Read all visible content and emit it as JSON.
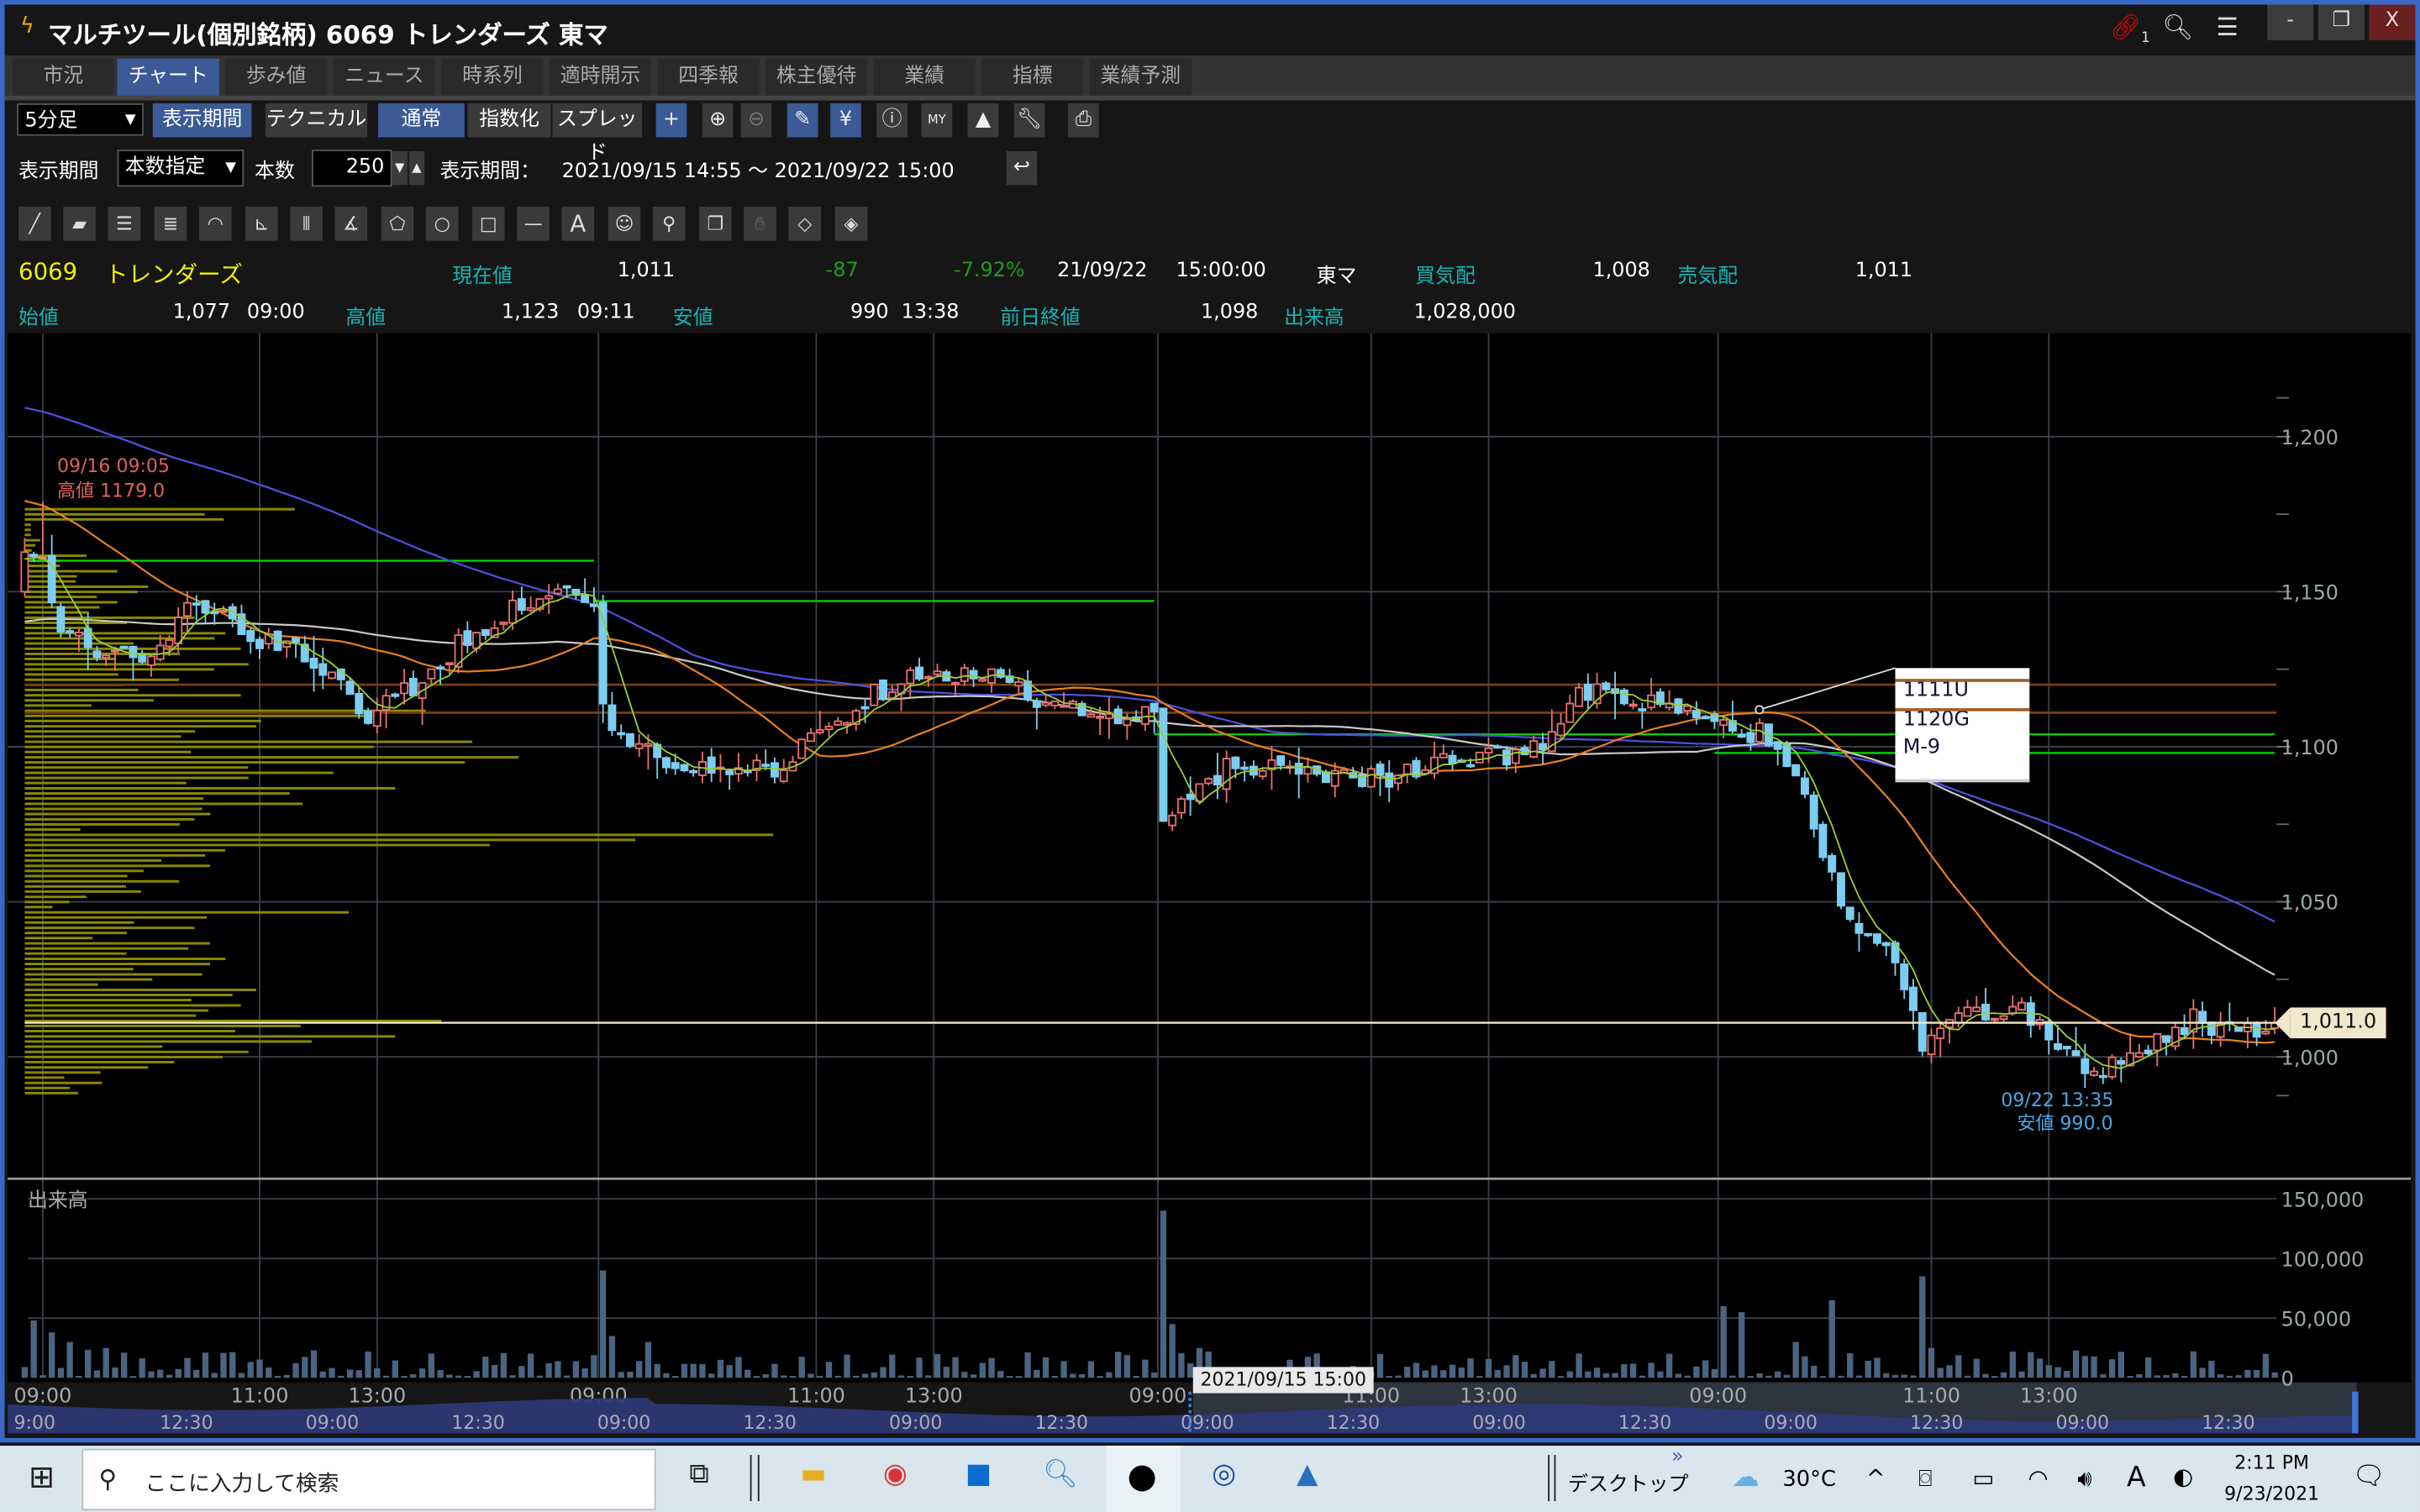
{
  "window": {
    "title": "マルチツール(個別銘柄) 6069 トレンダーズ 東マ",
    "link_badge": "1",
    "minimize": "-",
    "close": "X"
  },
  "tabs": [
    {
      "label": "市況"
    },
    {
      "label": "チャート",
      "active": true
    },
    {
      "label": "歩み値"
    },
    {
      "label": "ニュース"
    },
    {
      "label": "時系列"
    },
    {
      "label": "適時開示"
    },
    {
      "label": "四季報"
    },
    {
      "label": "株主優待"
    },
    {
      "label": "業績"
    },
    {
      "label": "指標"
    },
    {
      "label": "業績予測"
    }
  ],
  "toolbar": {
    "interval": "5分足",
    "period_button": "表示期間",
    "technical_button": "テクニカル",
    "normal_button": "通常",
    "index_button": "指数化",
    "spread_button": "スプレッド",
    "icons": [
      "crosshair-icon",
      "zoom-in-icon",
      "zoom-out-icon",
      "pencil-icon",
      "yen-icon",
      "info-icon",
      "my-chart-icon",
      "mountain-icon",
      "wrench-icon",
      "print-icon"
    ]
  },
  "period_row": {
    "label": "表示期間",
    "mode": "本数指定",
    "count_label": "本数",
    "count_value": "250",
    "range_label": "表示期間：",
    "range_value": "2021/09/15 14:55 ～ 2021/09/22 15:00"
  },
  "drawing_tools": [
    "line",
    "ruler",
    "parallel-lines",
    "multi-lines",
    "fibonacci-arc",
    "fan",
    "vertical-lines",
    "gann-fan",
    "pentagon",
    "circle",
    "rectangle",
    "horizontal-line",
    "text",
    "icon",
    "pin",
    "copy",
    "hand",
    "eraser",
    "eraser-all"
  ],
  "quote": {
    "code": "6069",
    "name": "トレンダーズ",
    "current_label": "現在値",
    "current": "1,011",
    "change": "-87",
    "change_pct": "-7.92%",
    "date": "21/09/22",
    "time": "15:00:00",
    "market": "東マ",
    "bid_label": "買気配",
    "bid": "1,008",
    "ask_label": "売気配",
    "ask": "1,011",
    "open_label": "始値",
    "open": "1,077",
    "open_time": "09:00",
    "high_label": "高値",
    "high": "1,123",
    "high_time": "09:11",
    "low_label": "安値",
    "low": "990",
    "low_time": "13:38",
    "prev_close_label": "前日終値",
    "prev_close": "1,098",
    "volume_label": "出来高",
    "volume": "1,028,000"
  },
  "chart_data": {
    "type": "candlestick",
    "bar_count": 250,
    "interval": "5min",
    "colors": {
      "up": "#e87070",
      "down": "#7ccdf0",
      "ma_short": "#9acd32",
      "ma_mid": "#e8801e",
      "ma_long": "#5050e0",
      "ma_white": "#c8c8c8",
      "profile": "#8a8a00",
      "brown_line": "#7a3e12",
      "green_line": "#00dd00",
      "price_line": "#f2e6cc"
    },
    "close_keyframes": [
      [
        0,
        1165
      ],
      [
        2,
        1160
      ],
      [
        4,
        1140
      ],
      [
        7,
        1132
      ],
      [
        14,
        1128
      ],
      [
        19,
        1148
      ],
      [
        25,
        1135
      ],
      [
        31,
        1130
      ],
      [
        38,
        1110
      ],
      [
        43,
        1120
      ],
      [
        49,
        1135
      ],
      [
        57,
        1150
      ],
      [
        63,
        1148
      ],
      [
        64,
        1112
      ],
      [
        67,
        1100
      ],
      [
        74,
        1092
      ],
      [
        83,
        1093
      ],
      [
        88,
        1105
      ],
      [
        93,
        1115
      ],
      [
        98,
        1125
      ],
      [
        107,
        1122
      ],
      [
        113,
        1115
      ],
      [
        120,
        1108
      ],
      [
        125,
        1110
      ],
      [
        126,
        1075
      ],
      [
        129,
        1085
      ],
      [
        134,
        1095
      ],
      [
        143,
        1092
      ],
      [
        151,
        1090
      ],
      [
        158,
        1095
      ],
      [
        165,
        1098
      ],
      [
        170,
        1105
      ],
      [
        172,
        1118
      ],
      [
        178,
        1115
      ],
      [
        185,
        1110
      ],
      [
        188,
        1108
      ],
      [
        190,
        1100
      ],
      [
        192,
        1108
      ],
      [
        196,
        1090
      ],
      [
        199,
        1065
      ],
      [
        202,
        1045
      ],
      [
        207,
        1030
      ],
      [
        210,
        1005
      ],
      [
        214,
        1012
      ],
      [
        220,
        1015
      ],
      [
        223,
        1012
      ],
      [
        228,
        995
      ],
      [
        233,
        1000
      ],
      [
        237,
        1008
      ],
      [
        240,
        1012
      ],
      [
        245,
        1008
      ],
      [
        249,
        1011
      ]
    ],
    "price_axis": {
      "ticks": [
        1200,
        1150,
        1100,
        1050,
        1000
      ],
      "labels": [
        "1,200",
        "1,150",
        "1,100",
        "1,050",
        "1,000"
      ],
      "range": [
        975,
        1216
      ]
    },
    "time_axis_labels": [
      "09:00",
      "11:00",
      "13:00",
      "09:00",
      "11:00",
      "13:00",
      "09:00",
      "11:00",
      "13:00",
      "09:00",
      "11:00",
      "13:00"
    ],
    "horizontal_lines": {
      "brown": [
        1120,
        1111
      ],
      "green": [
        [
          1160,
          0,
          63
        ],
        [
          1147,
          63,
          125
        ],
        [
          1104,
          125,
          249
        ],
        [
          1098,
          187,
          249
        ]
      ],
      "current": 1011
    },
    "current_price_label": "1,011.0",
    "high_annotation": {
      "time": "09/16 09:05",
      "text": "高値 1179.0",
      "value": 1179
    },
    "low_annotation": {
      "time": "09/22 13:35",
      "text": "安値 990.0",
      "value": 990
    },
    "note_box": [
      "1111U",
      "1120G",
      "M-9"
    ],
    "volume_profile": {
      "prices": [
        1175,
        1170,
        1165,
        1160,
        1155,
        1150,
        1145,
        1140,
        1135,
        1130,
        1125,
        1120,
        1115,
        1110,
        1105,
        1100,
        1095,
        1090,
        1085,
        1080,
        1075,
        1070,
        1065,
        1060,
        1055,
        1050,
        1045,
        1040,
        1035,
        1030,
        1025,
        1020,
        1015,
        1010,
        1005,
        1000,
        995,
        990
      ],
      "values": [
        175,
        0,
        10,
        40,
        60,
        80,
        60,
        110,
        130,
        140,
        145,
        100,
        140,
        260,
        150,
        290,
        320,
        200,
        240,
        180,
        110,
        485,
        130,
        120,
        100,
        40,
        210,
        110,
        120,
        130,
        115,
        150,
        140,
        270,
        240,
        145,
        80,
        50
      ]
    },
    "volume": {
      "label": "出来高",
      "ticks": [
        150000,
        100000,
        50000,
        0
      ],
      "tick_labels": [
        "150,000",
        "100,000",
        "50,000",
        "0"
      ],
      "spikes": [
        [
          1,
          48000
        ],
        [
          3,
          38000
        ],
        [
          5,
          30000
        ],
        [
          9,
          25000
        ],
        [
          38,
          22000
        ],
        [
          64,
          90000
        ],
        [
          65,
          35000
        ],
        [
          69,
          30000
        ],
        [
          126,
          140000
        ],
        [
          127,
          45000
        ],
        [
          130,
          25000
        ],
        [
          131,
          22000
        ],
        [
          188,
          60000
        ],
        [
          190,
          55000
        ],
        [
          196,
          30000
        ],
        [
          200,
          65000
        ],
        [
          210,
          85000
        ],
        [
          211,
          25000
        ],
        [
          220,
          22000
        ],
        [
          248,
          20000
        ]
      ]
    }
  },
  "navigator": {
    "labels": [
      "9:00",
      "12:30",
      "09:00",
      "12:30",
      "09:00",
      "12:30",
      "09:00",
      "12:30",
      "09:00",
      "12:30",
      "09:00",
      "12:30",
      "09:00",
      "12:30",
      "09:00",
      "12:30"
    ],
    "tooltip": "2021/09/15 15:00"
  },
  "taskbar": {
    "search_placeholder": "ここに入力して検索",
    "desktop_label": "デスクトップ",
    "temperature": "30°C",
    "time": "2:11 PM",
    "date": "9/23/2021",
    "ime": "A"
  }
}
